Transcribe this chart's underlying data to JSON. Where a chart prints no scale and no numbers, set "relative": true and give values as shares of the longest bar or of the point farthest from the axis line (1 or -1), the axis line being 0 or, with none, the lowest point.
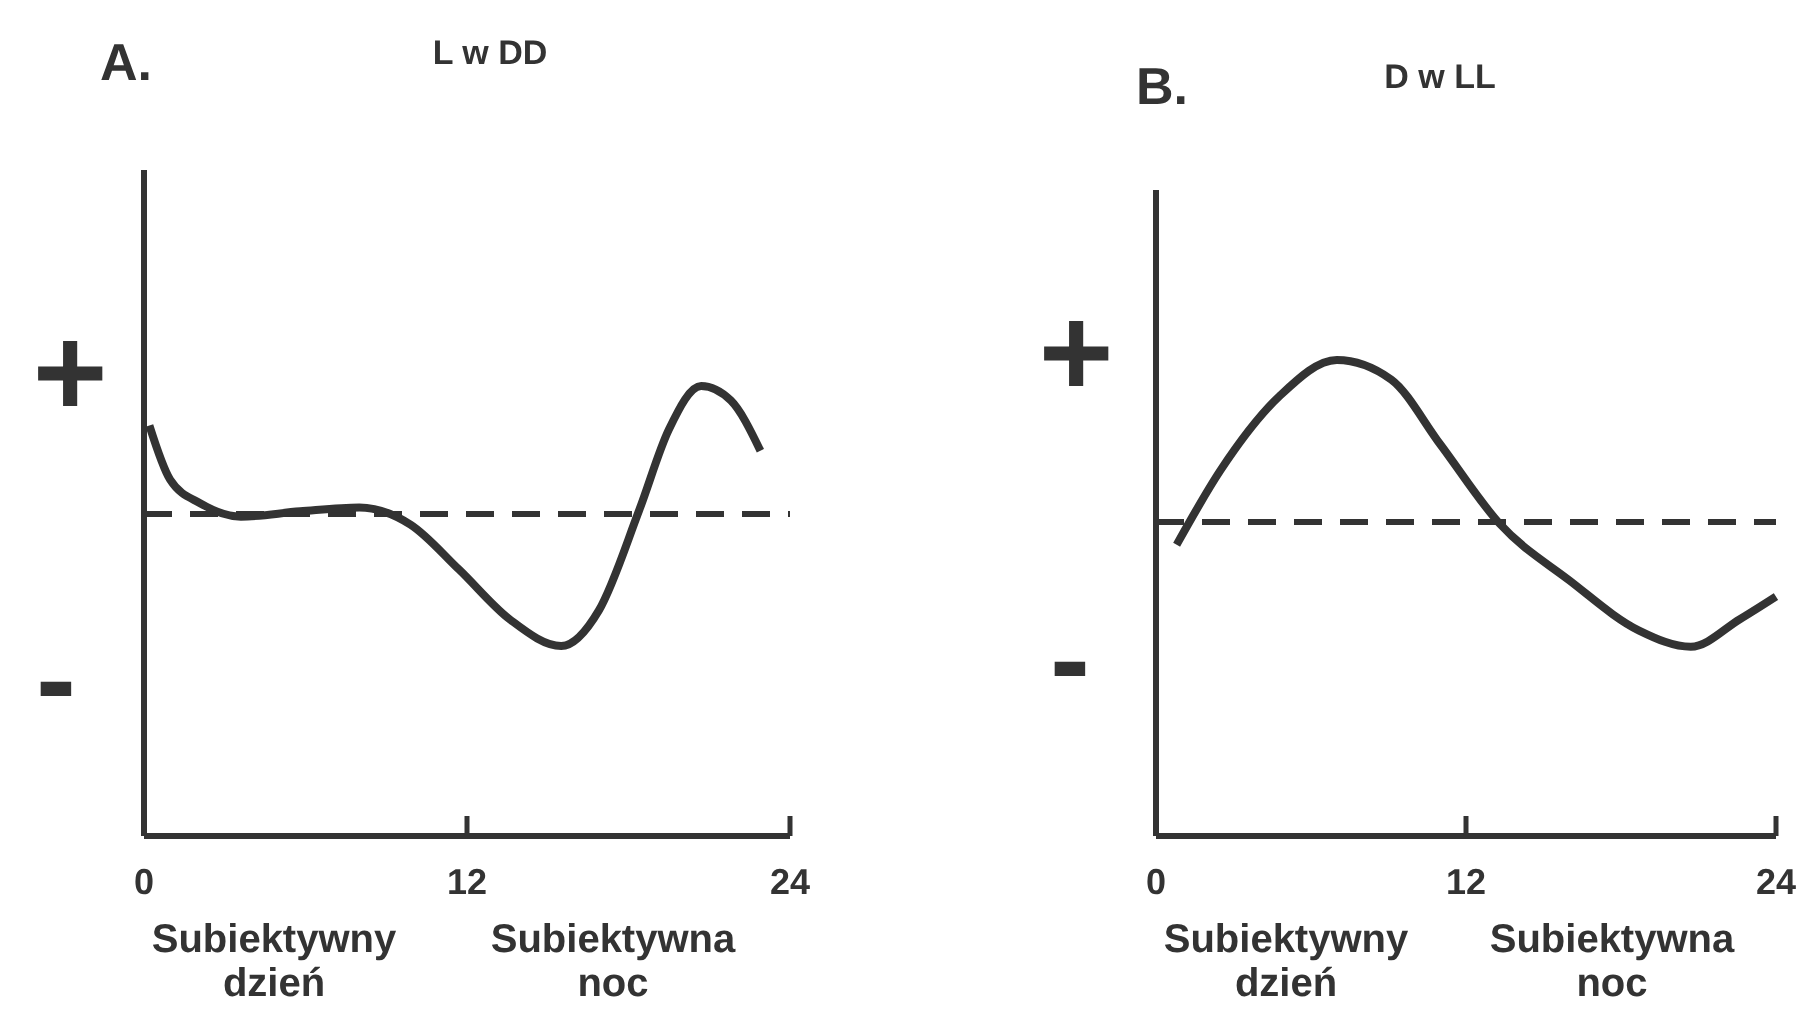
{
  "chart_data": [
    {
      "type": "line",
      "title": "L w DD",
      "relative": true,
      "xlim": [
        0,
        24
      ],
      "xticks": [
        0,
        12,
        24
      ],
      "marker": "none",
      "line_style": "solid",
      "grid": false,
      "annotations": [
        "A.",
        "+",
        "-",
        "Subiektywny dzień",
        "Subiektywna noc"
      ],
      "ref_lines": [
        {
          "axis": "y",
          "value": 0,
          "line_style": "dashed",
          "color": "#333333"
        }
      ],
      "series": [
        {
          "color": "#333333",
          "x": [
            0.2,
            0.97,
            2.1,
            3.6,
            5.8,
            8,
            9.9,
            11.7,
            13.6,
            15.5,
            16.9,
            18.4,
            19.5,
            20.7,
            21.8,
            22.9
          ],
          "values": [
            0.67,
            0.26,
            0.08,
            -0.02,
            0.02,
            0.05,
            -0.08,
            -0.42,
            -0.8,
            -1,
            -0.73,
            0.03,
            0.64,
            0.97,
            0.86,
            0.48
          ]
        }
      ]
    },
    {
      "type": "line",
      "title": "D w LL",
      "relative": true,
      "xlim": [
        0,
        24
      ],
      "xticks": [
        0,
        12,
        24
      ],
      "marker": "none",
      "line_style": "solid",
      "grid": false,
      "annotations": [
        "B.",
        "+",
        "-",
        "Subiektywny dzień",
        "Subiektywna noc"
      ],
      "ref_lines": [
        {
          "axis": "y",
          "value": 0,
          "line_style": "dashed",
          "color": "#333333"
        }
      ],
      "series": [
        {
          "color": "#333333",
          "x": [
            0.8,
            2.5,
            4.8,
            7,
            9.1,
            11,
            13.3,
            16,
            18.7,
            20.7,
            22.6,
            24
          ],
          "values": [
            -0.14,
            0.32,
            0.78,
            1,
            0.88,
            0.48,
            -0.01,
            -0.36,
            -0.67,
            -0.77,
            -0.6,
            -0.46
          ]
        }
      ]
    }
  ]
}
